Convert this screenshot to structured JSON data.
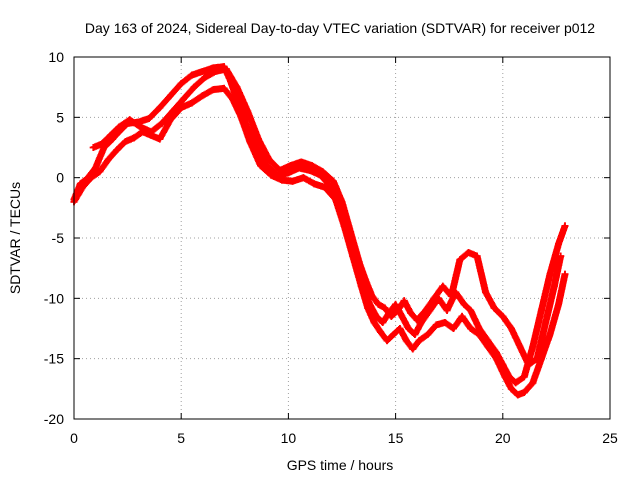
{
  "chart_data": {
    "type": "scatter",
    "title": "Day 163 of 2024, Sidereal Day-to-day VTEC variation (SDTVAR) for receiver p012",
    "xlabel": "GPS time / hours",
    "ylabel": "SDTVAR / TECUs",
    "xlim": [
      0,
      25
    ],
    "ylim": [
      -20,
      10
    ],
    "xticks": [
      "0",
      "5",
      "10",
      "15",
      "20",
      "25"
    ],
    "yticks": [
      "10",
      "5",
      "0",
      "-5",
      "-10",
      "-15",
      "-20"
    ],
    "grid": true,
    "marker": "plus",
    "color": "#ff0000",
    "series": [
      {
        "x": [
          0.0,
          0.3,
          0.6,
          1.0,
          1.4,
          1.8,
          2.1,
          2.5,
          3.0,
          3.5,
          4.0,
          4.5,
          5.0,
          5.5,
          6.0,
          6.5,
          7.0,
          7.3,
          7.7,
          8.0,
          8.5,
          9.0,
          9.5,
          10.0,
          10.5,
          11.0,
          11.5,
          12.0,
          12.4,
          12.8,
          13.2,
          13.5,
          13.8,
          14.1,
          14.4,
          14.7,
          15.0,
          15.3,
          15.6,
          15.9,
          16.2,
          16.6,
          17.0,
          17.4,
          17.8,
          18.2,
          18.5,
          18.9,
          19.3,
          19.7,
          20.0,
          20.3,
          20.6,
          21.0,
          21.4,
          21.8,
          22.2,
          22.6,
          22.9
        ],
        "y": [
          -1.8,
          -0.5,
          -0.1,
          0.8,
          2.5,
          3.2,
          3.8,
          4.5,
          4.6,
          4.9,
          5.8,
          6.8,
          7.8,
          8.5,
          8.8,
          9.1,
          9.2,
          8.0,
          6.0,
          4.5,
          2.5,
          1.0,
          0.2,
          0.4,
          0.8,
          0.6,
          0.2,
          -0.8,
          -2.5,
          -5.0,
          -7.5,
          -9.2,
          -10.5,
          -11.5,
          -12.0,
          -11.2,
          -10.5,
          -11.5,
          -12.5,
          -13.0,
          -12.0,
          -11.0,
          -10.0,
          -11.0,
          -9.5,
          -10.5,
          -11.0,
          -12.5,
          -13.5,
          -14.5,
          -15.5,
          -16.5,
          -17.0,
          -16.5,
          -14.0,
          -11.0,
          -8.0,
          -5.5,
          -4.0
        ]
      },
      {
        "x": [
          0.0,
          0.4,
          0.8,
          1.2,
          1.6,
          2.0,
          2.4,
          2.8,
          3.2,
          3.6,
          4.0,
          4.5,
          5.0,
          5.5,
          6.0,
          6.5,
          7.0,
          7.4,
          7.8,
          8.2,
          8.7,
          9.2,
          9.7,
          10.2,
          10.7,
          11.2,
          11.7,
          12.2,
          12.6,
          13.0,
          13.4,
          13.7,
          14.0,
          14.3,
          14.6,
          14.9,
          15.2,
          15.5,
          15.8,
          16.1,
          16.5,
          16.9,
          17.3,
          17.7,
          18.1,
          18.5,
          18.9,
          19.3,
          19.7,
          20.1,
          20.4,
          20.7,
          21.0,
          21.4,
          21.8,
          22.2,
          22.6,
          22.9
        ],
        "y": [
          -2.0,
          -0.8,
          0.0,
          0.5,
          1.5,
          2.3,
          3.0,
          3.3,
          3.8,
          3.5,
          3.2,
          4.8,
          5.8,
          6.2,
          6.8,
          7.3,
          7.4,
          6.5,
          5.0,
          3.0,
          1.0,
          0.2,
          -0.2,
          -0.3,
          0.0,
          -0.5,
          -0.8,
          -1.8,
          -4.0,
          -6.5,
          -9.0,
          -10.8,
          -12.0,
          -12.8,
          -13.5,
          -13.0,
          -12.5,
          -13.5,
          -14.2,
          -13.5,
          -13.0,
          -12.2,
          -12.0,
          -12.5,
          -11.5,
          -12.5,
          -13.0,
          -14.0,
          -15.0,
          -16.5,
          -17.5,
          -18.0,
          -17.8,
          -17.0,
          -15.0,
          -13.0,
          -10.5,
          -8.0
        ]
      },
      {
        "x": [
          0.9,
          1.3,
          1.7,
          2.1,
          2.6,
          3.1,
          3.6,
          4.1,
          4.6,
          5.1,
          5.6,
          6.1,
          6.6,
          7.1,
          7.6,
          8.1,
          8.6,
          9.1,
          9.6,
          10.1,
          10.6,
          11.1,
          11.6,
          12.1,
          12.5,
          12.9,
          13.3,
          13.6,
          13.9,
          14.2,
          14.5,
          14.8,
          15.1,
          15.4,
          15.7,
          16.0,
          16.4,
          16.8,
          17.2,
          17.6,
          18.0,
          18.4,
          18.8,
          19.2,
          19.6,
          20.0,
          20.4,
          20.8,
          21.2,
          21.6,
          22.0,
          22.4,
          22.7
        ],
        "y": [
          2.5,
          2.8,
          3.5,
          4.2,
          4.8,
          4.2,
          3.8,
          4.5,
          5.5,
          6.5,
          7.5,
          8.3,
          8.8,
          9.0,
          7.5,
          5.5,
          3.2,
          1.5,
          0.6,
          1.0,
          1.3,
          1.0,
          0.5,
          -0.3,
          -2.0,
          -4.5,
          -7.0,
          -8.5,
          -9.8,
          -10.5,
          -10.8,
          -11.5,
          -11.0,
          -10.2,
          -11.2,
          -11.8,
          -11.0,
          -10.0,
          -9.0,
          -9.8,
          -6.8,
          -6.2,
          -6.5,
          -9.5,
          -10.8,
          -11.5,
          -12.5,
          -14.0,
          -15.5,
          -15.0,
          -12.0,
          -9.0,
          -6.5
        ]
      }
    ]
  }
}
